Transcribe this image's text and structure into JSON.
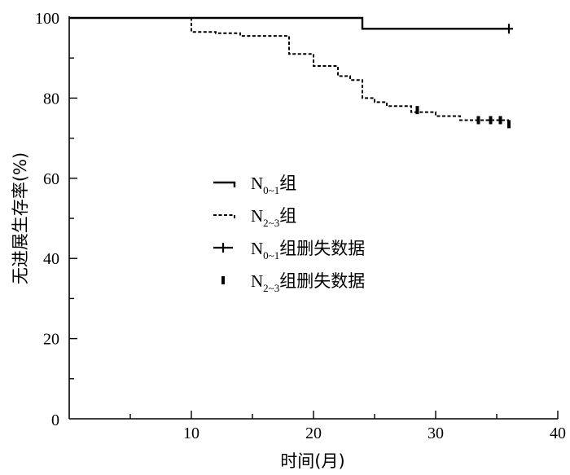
{
  "chart_data": {
    "type": "line",
    "xlabel": "时间(月)",
    "ylabel": "无进展生存率(%)",
    "xlim": [
      0,
      40
    ],
    "ylim": [
      0,
      100
    ],
    "xticks": [
      10,
      20,
      30,
      40
    ],
    "yticks": [
      0,
      20,
      40,
      60,
      80,
      100
    ],
    "grid": false,
    "legend_position": "center-left",
    "series": [
      {
        "key": "n01",
        "name": "N0~1组",
        "label_main": "N",
        "label_sub": "0~1",
        "label_suffix": "组",
        "style": "solid-step",
        "x": [
          0,
          24,
          36
        ],
        "y": [
          100,
          97.3,
          97.3
        ]
      },
      {
        "key": "n23",
        "name": "N2~3组",
        "label_main": "N",
        "label_sub": "2~3",
        "label_suffix": "组",
        "style": "dashed-step",
        "x": [
          0,
          10,
          12,
          14,
          18,
          19,
          20,
          22,
          23,
          24,
          25,
          26,
          28,
          30,
          32,
          34,
          36
        ],
        "y": [
          100,
          96.5,
          96.2,
          95.5,
          91,
          91,
          88,
          85.5,
          84.5,
          80,
          79,
          78,
          76.5,
          75.5,
          74.5,
          74.5,
          74.5
        ]
      }
    ],
    "censored": [
      {
        "key": "n01-censor",
        "name": "N0~1组删失数据",
        "label_main": "N",
        "label_sub": "0~1",
        "label_suffix": "组删失数据",
        "marker": "plus",
        "points": [
          [
            36,
            97.3
          ]
        ]
      },
      {
        "key": "n23-censor",
        "name": "N2~3组删失数据",
        "label_main": "N",
        "label_sub": "2~3",
        "label_suffix": "组删失数据",
        "marker": "bar",
        "points": [
          [
            28.5,
            77
          ],
          [
            33.5,
            74.5
          ],
          [
            34.5,
            74.5
          ],
          [
            35.3,
            74.5
          ],
          [
            36,
            73.5
          ]
        ]
      }
    ]
  }
}
